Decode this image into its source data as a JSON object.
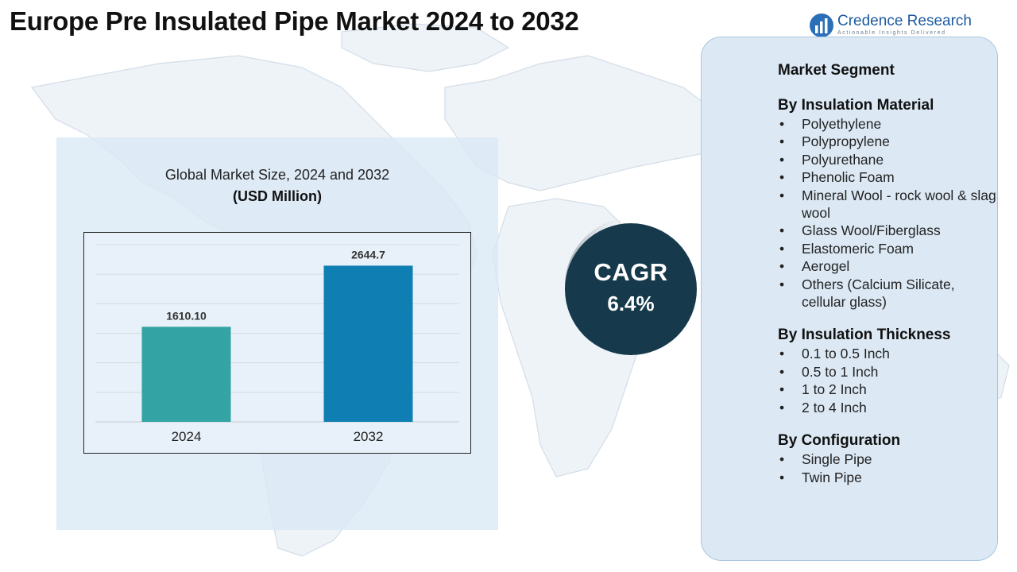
{
  "title": "Europe Pre Insulated Pipe Market  2024 to 2032",
  "logo": {
    "name": "Credence Research",
    "tagline": "Actionable Insights Delivered"
  },
  "chart": {
    "title": "Global Market Size, 2024 and 2032",
    "unit_label": "(USD Million)"
  },
  "chart_data": {
    "type": "bar",
    "title": "Global Market Size, 2024 and 2032",
    "ylabel": "(USD Million)",
    "categories": [
      "2024",
      "2032"
    ],
    "values": [
      1610.1,
      2644.7
    ],
    "value_labels": [
      "1610.10",
      "2644.7"
    ],
    "colors": [
      "#34a3a3",
      "#0f7fb3"
    ],
    "ylim": [
      0,
      3000
    ],
    "grid": true,
    "legend": "none"
  },
  "cagr": {
    "label": "CAGR",
    "value": "6.4%"
  },
  "segments": {
    "heading": "Market Segment",
    "groups": [
      {
        "title": "By Insulation Material",
        "items": [
          "Polyethylene",
          "Polypropylene",
          "Polyurethane",
          "Phenolic Foam",
          "Mineral Wool - rock wool & slag wool",
          "Glass Wool/Fiberglass",
          "Elastomeric Foam",
          "Aerogel",
          "Others (Calcium Silicate, cellular glass)"
        ]
      },
      {
        "title": "By Insulation Thickness",
        "items": [
          "0.1 to 0.5 Inch",
          "0.5 to 1 Inch",
          "1 to 2 Inch",
          "2 to 4 Inch"
        ]
      },
      {
        "title": "By Configuration",
        "items": [
          "Single Pipe",
          "Twin Pipe"
        ]
      }
    ]
  },
  "colors": {
    "cagr_circle": "#163a4b",
    "panel_bg": "#dce9f5",
    "logo_blue": "#1d5aa0"
  }
}
